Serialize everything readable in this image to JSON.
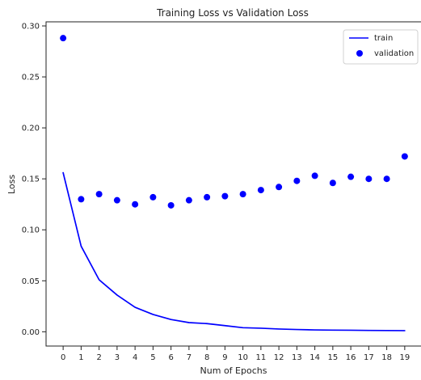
{
  "chart_data": {
    "type": "line",
    "title": "Training Loss vs Validation Loss",
    "xlabel": "Num of Epochs",
    "ylabel": "Loss",
    "xlim": [
      -0.95,
      19.95
    ],
    "ylim": [
      -0.014,
      0.304
    ],
    "x_ticks": [
      0,
      1,
      2,
      3,
      4,
      5,
      6,
      7,
      8,
      9,
      10,
      11,
      12,
      13,
      14,
      15,
      16,
      17,
      18,
      19
    ],
    "y_ticks": [
      0.0,
      0.05,
      0.1,
      0.15,
      0.2,
      0.25,
      0.3
    ],
    "y_tick_labels": [
      "0.00",
      "0.05",
      "0.10",
      "0.15",
      "0.20",
      "0.25",
      "0.30"
    ],
    "grid": false,
    "legend_position": "top-right",
    "series": [
      {
        "name": "train",
        "kind": "line",
        "color": "#0000ff",
        "x": [
          0,
          1,
          2,
          3,
          4,
          5,
          6,
          7,
          8,
          9,
          10,
          11,
          12,
          13,
          14,
          15,
          16,
          17,
          18,
          19
        ],
        "y": [
          0.156,
          0.084,
          0.051,
          0.036,
          0.024,
          0.017,
          0.012,
          0.009,
          0.008,
          0.006,
          0.004,
          0.0035,
          0.0027,
          0.0022,
          0.0018,
          0.0016,
          0.0015,
          0.0013,
          0.0012,
          0.0011
        ]
      },
      {
        "name": "validation",
        "kind": "scatter",
        "color": "#0000ff",
        "x": [
          0,
          1,
          2,
          3,
          4,
          5,
          6,
          7,
          8,
          9,
          10,
          11,
          12,
          13,
          14,
          15,
          16,
          17,
          18,
          19
        ],
        "y": [
          0.288,
          0.13,
          0.135,
          0.129,
          0.125,
          0.132,
          0.124,
          0.129,
          0.132,
          0.133,
          0.135,
          0.139,
          0.142,
          0.148,
          0.153,
          0.146,
          0.152,
          0.15,
          0.15,
          0.172
        ]
      }
    ]
  }
}
